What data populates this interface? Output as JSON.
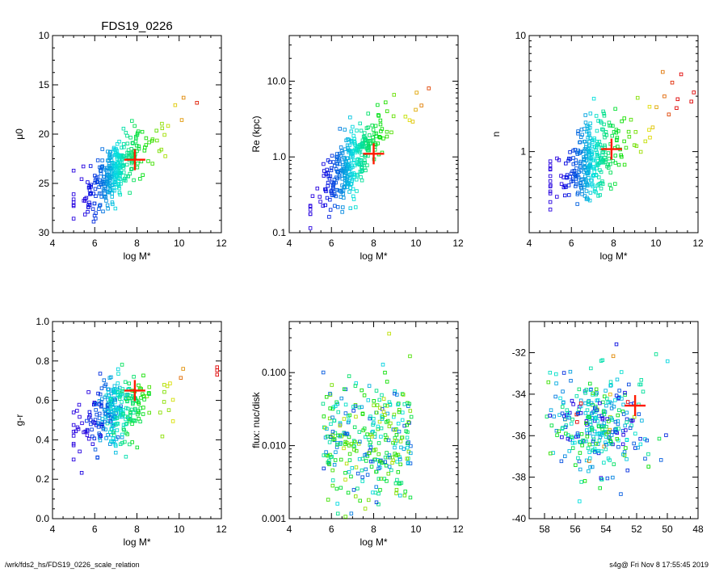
{
  "figure": {
    "footer_left": "/wrk/fds2_hs/FDS19_0226_scale_relation",
    "footer_right": "s4g@  Fri Nov  8 17:55:45 2019"
  },
  "chart_data": [
    {
      "type": "scatter",
      "title": "FDS19_0226",
      "xlabel": "log M*",
      "ylabel": "μ0",
      "xlim": [
        4,
        12
      ],
      "ylim": [
        30,
        10
      ],
      "y_reversed": true,
      "xticks": [
        "4",
        "6",
        "8",
        "10",
        "12"
      ],
      "yticks": [
        "10",
        "15",
        "20",
        "25",
        "30"
      ],
      "highlight": {
        "x": 7.9,
        "y": 22.6
      },
      "note": "sample points colored blue→red by increasing log M*"
    },
    {
      "type": "scatter",
      "title": "",
      "xlabel": "log M*",
      "ylabel": "Re (kpc)",
      "xlim": [
        4,
        12
      ],
      "ylim": [
        0.1,
        40
      ],
      "y_log": true,
      "xticks": [
        "4",
        "6",
        "8",
        "10",
        "12"
      ],
      "yticks": [
        "0.1",
        "1.0",
        "10.0"
      ],
      "highlight": {
        "x": 8.0,
        "y": 1.1
      }
    },
    {
      "type": "scatter",
      "title": "",
      "xlabel": "log M*",
      "ylabel": "n",
      "xlim": [
        4,
        12
      ],
      "ylim": [
        0.2,
        10
      ],
      "y_log": true,
      "xticks": [
        "4",
        "6",
        "8",
        "10",
        "12"
      ],
      "yticks": [
        "1",
        "10"
      ],
      "highlight": {
        "x": 7.9,
        "y": 1.05
      }
    },
    {
      "type": "scatter",
      "title": "",
      "xlabel": "log M*",
      "ylabel": "g-r",
      "xlim": [
        4,
        12
      ],
      "ylim": [
        0.0,
        1.0
      ],
      "xticks": [
        "4",
        "6",
        "8",
        "10",
        "12"
      ],
      "yticks": [
        "0.0",
        "0.2",
        "0.4",
        "0.6",
        "0.8",
        "1.0"
      ],
      "highlight": {
        "x": 7.9,
        "y": 0.65
      }
    },
    {
      "type": "scatter",
      "title": "",
      "xlabel": "log M*",
      "ylabel": "flux: nuc/disk",
      "xlim": [
        4,
        12
      ],
      "ylim": [
        0.001,
        0.5
      ],
      "y_log": true,
      "xticks": [
        "4",
        "6",
        "8",
        "10",
        "12"
      ],
      "yticks": [
        "0.001",
        "0.010",
        "0.100"
      ]
    },
    {
      "type": "scatter",
      "title": "",
      "xlabel": "",
      "ylabel": "",
      "xlim": [
        59,
        48
      ],
      "ylim": [
        -40,
        -30.5
      ],
      "x_reversed": true,
      "xticks": [
        "58",
        "56",
        "54",
        "52",
        "50",
        "48"
      ],
      "yticks": [
        "-40",
        "-38",
        "-36",
        "-34",
        "-32"
      ],
      "highlight": {
        "x": 52.1,
        "y": -34.55
      }
    }
  ]
}
